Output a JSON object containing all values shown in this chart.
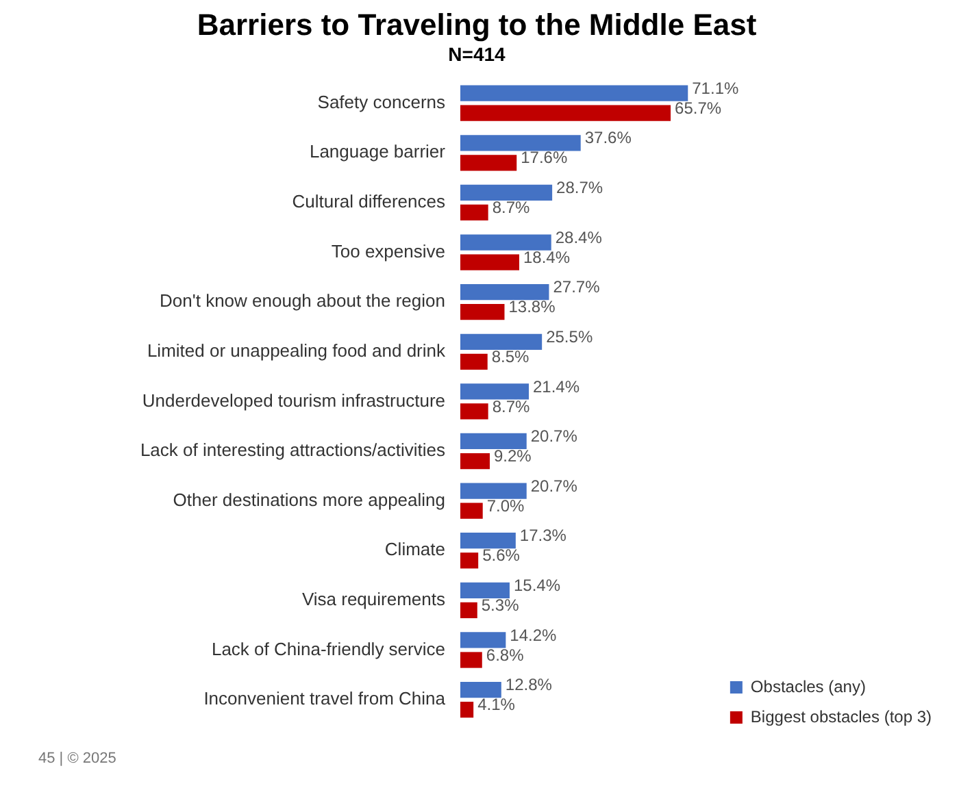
{
  "chart_data": {
    "type": "bar",
    "orientation": "horizontal",
    "title": "Barriers to Traveling to the Middle East",
    "subtitle": "N=414",
    "categories": [
      "Safety concerns",
      "Language barrier",
      "Cultural differences",
      "Too expensive",
      "Don't know enough about the region",
      "Limited or unappealing food and drink",
      "Underdeveloped tourism infrastructure",
      "Lack of interesting attractions/activities",
      "Other destinations more appealing",
      "Climate",
      "Visa requirements",
      "Lack of China-friendly service",
      "Inconvenient travel from China"
    ],
    "series": [
      {
        "name": "Obstacles (any)",
        "color": "#4472c4",
        "values": [
          71.1,
          37.6,
          28.7,
          28.4,
          27.7,
          25.5,
          21.4,
          20.7,
          20.7,
          17.3,
          15.4,
          14.2,
          12.8
        ],
        "value_labels": [
          "71.1%",
          "37.6%",
          "28.7%",
          "28.4%",
          "27.7%",
          "25.5%",
          "21.4%",
          "20.7%",
          "20.7%",
          "17.3%",
          "15.4%",
          "14.2%",
          "12.8%"
        ]
      },
      {
        "name": "Biggest obstacles (top 3)",
        "color": "#c00000",
        "values": [
          65.7,
          17.6,
          8.7,
          18.4,
          13.8,
          8.5,
          8.7,
          9.2,
          7.0,
          5.6,
          5.3,
          6.8,
          4.1
        ],
        "value_labels": [
          "65.7%",
          "17.6%",
          "8.7%",
          "18.4%",
          "13.8%",
          "8.5%",
          "8.7%",
          "9.2%",
          "7.0%",
          "5.6%",
          "5.3%",
          "6.8%",
          "4.1%"
        ]
      }
    ],
    "legend": "bottom right",
    "tick_labels": "y",
    "annotations": [
      "45 | © 2025"
    ]
  }
}
